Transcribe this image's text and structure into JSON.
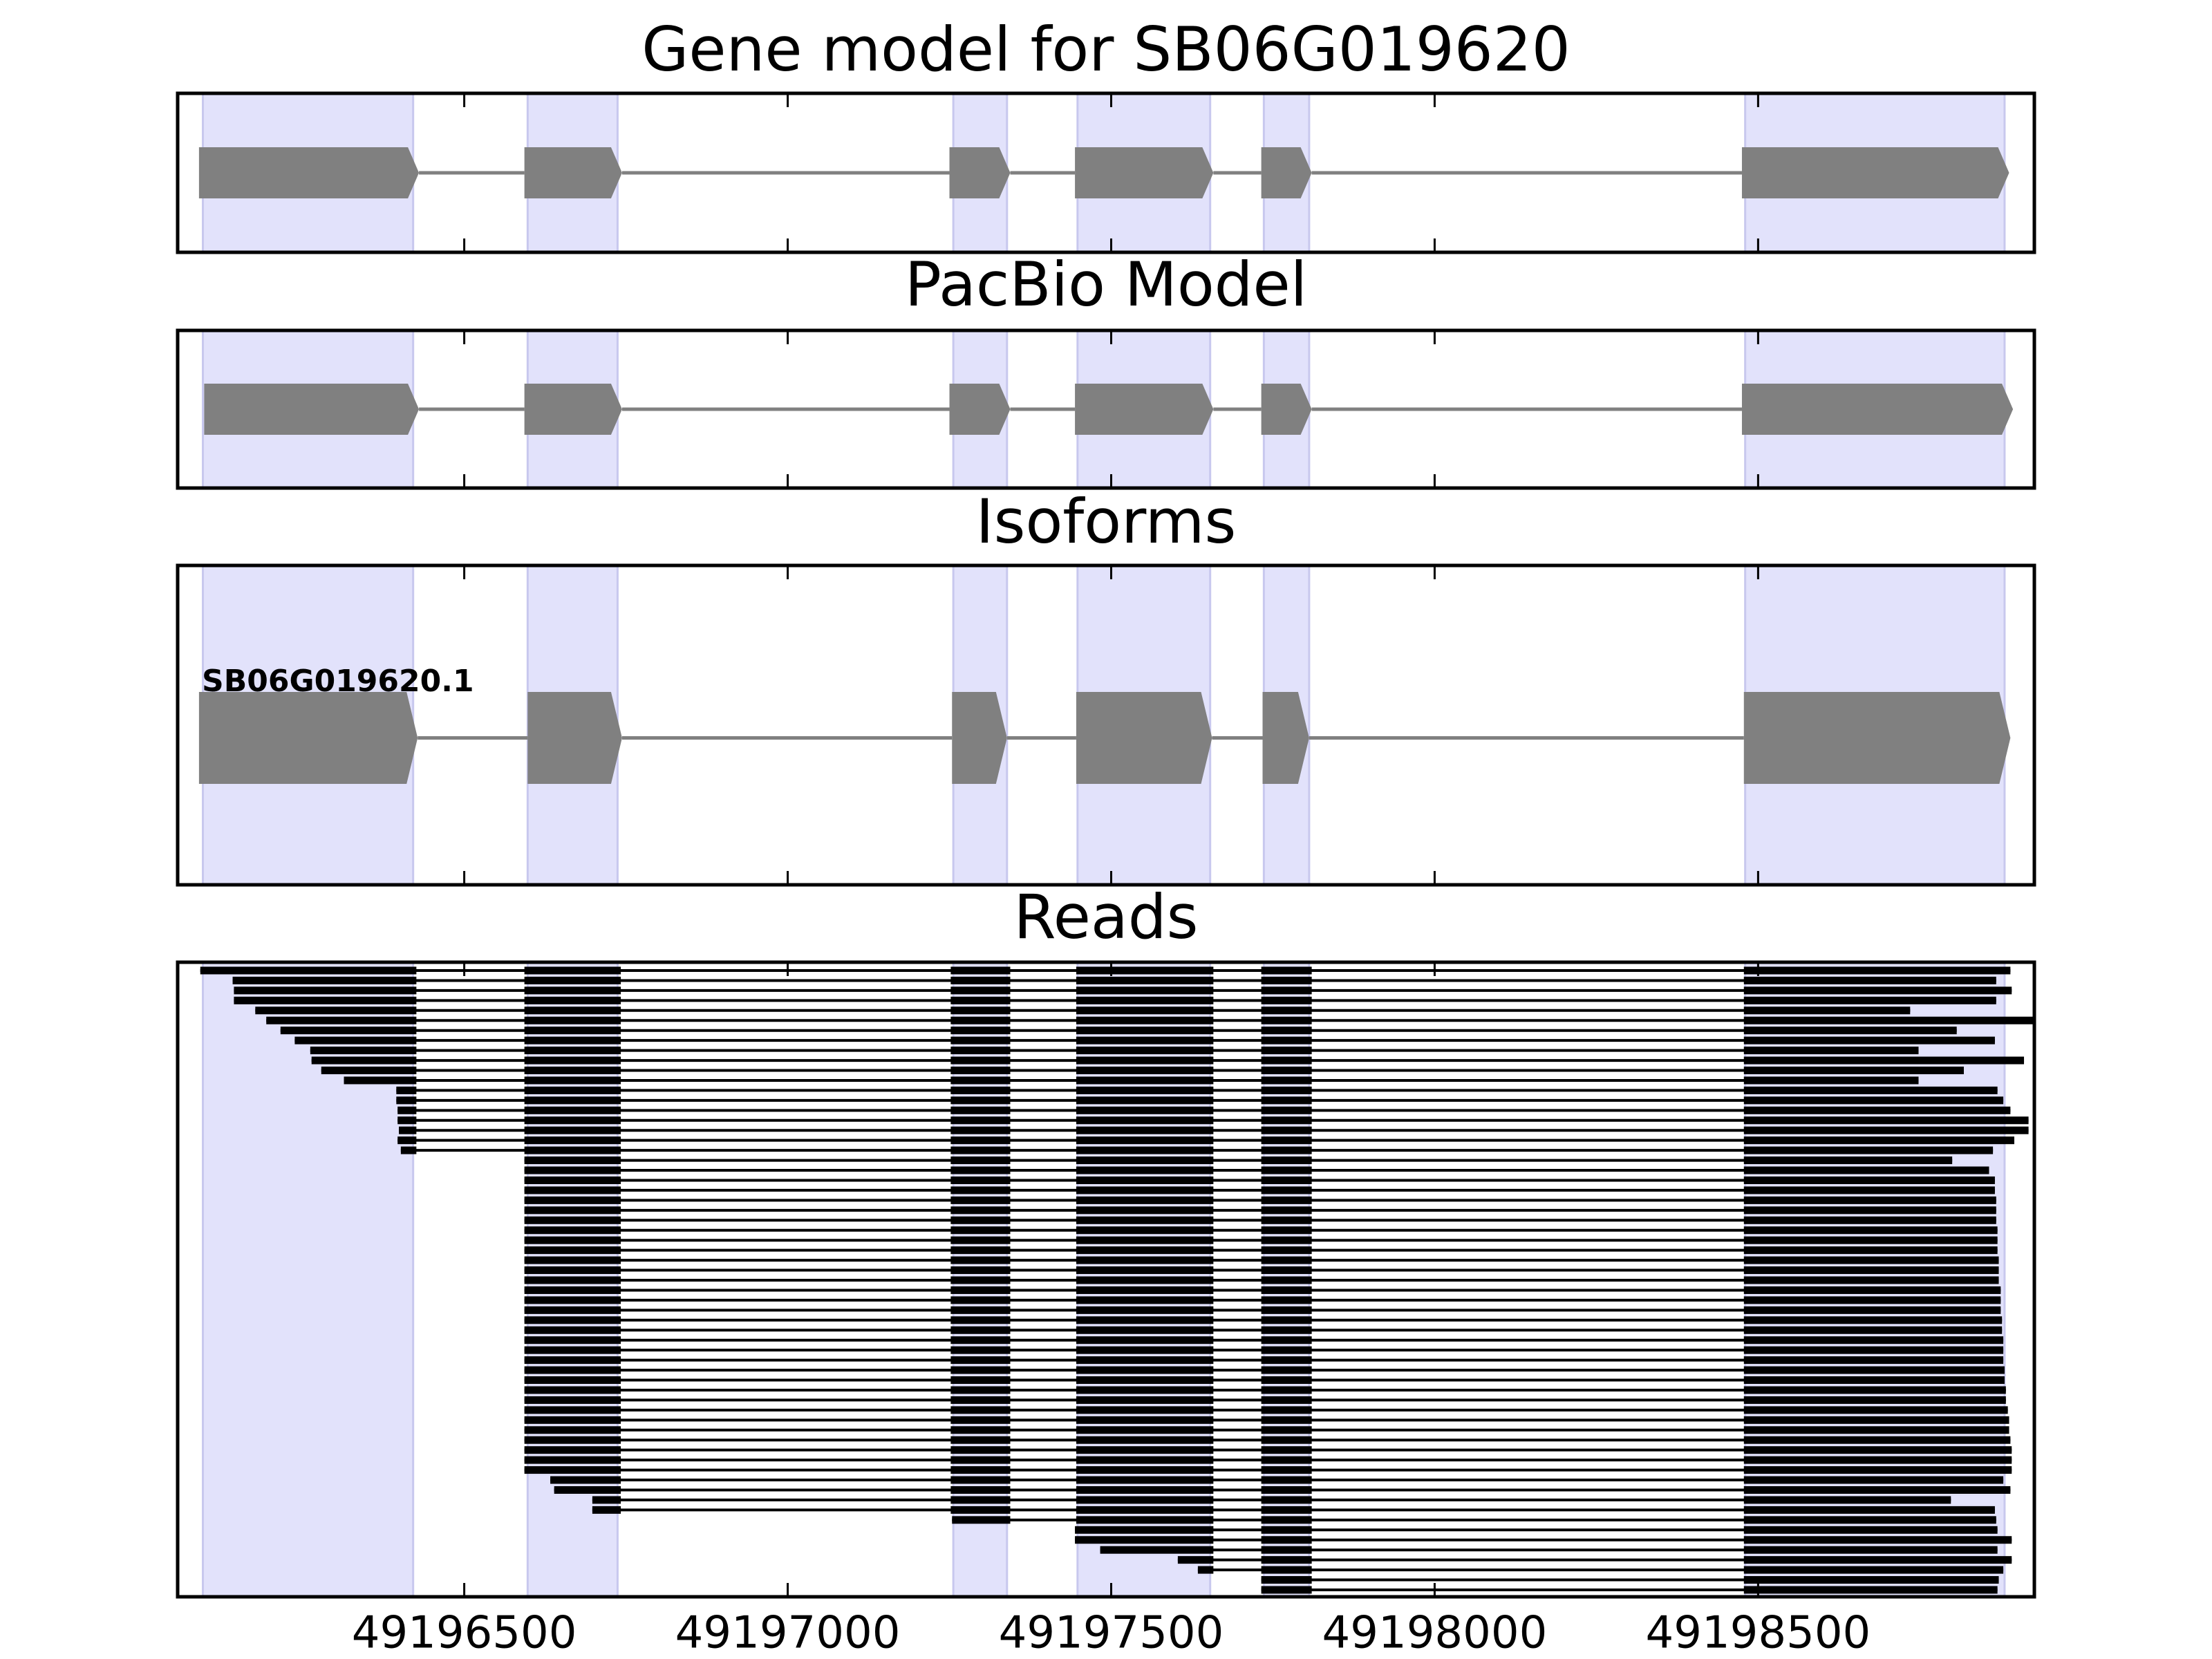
{
  "chart_data": [
    {
      "type": "gene",
      "title": "Gene model for SB06G019620",
      "xlim": [
        49196057,
        49198927
      ],
      "shaded": [
        [
          49196096,
          49196421
        ],
        [
          49196598,
          49196737
        ],
        [
          49197256,
          49197339
        ],
        [
          49197448,
          49197653
        ],
        [
          49197736,
          49197806
        ],
        [
          49198480,
          49198881
        ]
      ],
      "exons": [
        [
          49196090,
          49196430
        ],
        [
          49196593,
          49196744
        ],
        [
          49197250,
          49197344
        ],
        [
          49197444,
          49197658
        ],
        [
          49197732,
          49197810
        ],
        [
          49198475,
          49198888
        ]
      ]
    },
    {
      "type": "gene",
      "title": "PacBio Model",
      "xlim": [
        49196057,
        49198927
      ],
      "shaded": [
        [
          49196096,
          49196421
        ],
        [
          49196598,
          49196737
        ],
        [
          49197256,
          49197339
        ],
        [
          49197448,
          49197653
        ],
        [
          49197736,
          49197806
        ],
        [
          49198480,
          49198881
        ]
      ],
      "exons": [
        [
          49196098,
          49196430
        ],
        [
          49196593,
          49196744
        ],
        [
          49197250,
          49197344
        ],
        [
          49197444,
          49197658
        ],
        [
          49197732,
          49197810
        ],
        [
          49198475,
          49198894
        ]
      ]
    },
    {
      "type": "isoform",
      "title": "Isoforms",
      "label": "SB06G019620.1",
      "xlim": [
        49196057,
        49198927
      ],
      "shaded": [
        [
          49196096,
          49196421
        ],
        [
          49196598,
          49196737
        ],
        [
          49197256,
          49197339
        ],
        [
          49197448,
          49197653
        ],
        [
          49197736,
          49197806
        ],
        [
          49198480,
          49198881
        ]
      ],
      "exons": [
        [
          49196090,
          49196428
        ],
        [
          49196598,
          49196744
        ],
        [
          49197254,
          49197339
        ],
        [
          49197446,
          49197656
        ],
        [
          49197734,
          49197806
        ],
        [
          49198478,
          49198890
        ]
      ]
    },
    {
      "type": "reads",
      "title": "Reads",
      "xlim": [
        49196057,
        49198927
      ],
      "xticks": [
        49196500,
        49197000,
        49197500,
        49198000,
        49198500
      ],
      "shaded": [
        [
          49196096,
          49196421
        ],
        [
          49196598,
          49196737
        ],
        [
          49197256,
          49197339
        ],
        [
          49197448,
          49197653
        ],
        [
          49197736,
          49197806
        ],
        [
          49198480,
          49198881
        ]
      ],
      "introns": [
        [
          49196426,
          49196593
        ],
        [
          49196742,
          49197252
        ],
        [
          49197344,
          49197446
        ],
        [
          49197658,
          49197732
        ],
        [
          49197810,
          49198478
        ]
      ],
      "reads": [
        [
          49196092,
          49198890
        ],
        [
          49196142,
          49198868
        ],
        [
          49196144,
          49198892
        ],
        [
          49196144,
          49198868
        ],
        [
          49196177,
          49198735
        ],
        [
          49196194,
          49198927
        ],
        [
          49196216,
          49198807
        ],
        [
          49196238,
          49198866
        ],
        [
          49196262,
          49198748
        ],
        [
          49196264,
          49198911
        ],
        [
          49196279,
          49198818
        ],
        [
          49196314,
          49198748
        ],
        [
          49196395,
          49198870
        ],
        [
          49196395,
          49198879
        ],
        [
          49196397,
          49198890
        ],
        [
          49196397,
          49198918
        ],
        [
          49196399,
          49198918
        ],
        [
          49196397,
          49198896
        ],
        [
          49196402,
          49198863
        ],
        [
          49196593,
          49198800
        ],
        [
          49196593,
          49198857
        ],
        [
          49196593,
          49198866
        ],
        [
          49196593,
          49198866
        ],
        [
          49196593,
          49198868
        ],
        [
          49196593,
          49198868
        ],
        [
          49196593,
          49198868
        ],
        [
          49196593,
          49198870
        ],
        [
          49196593,
          49198870
        ],
        [
          49196593,
          49198870
        ],
        [
          49196593,
          49198872
        ],
        [
          49196593,
          49198872
        ],
        [
          49196593,
          49198872
        ],
        [
          49196593,
          49198875
        ],
        [
          49196593,
          49198875
        ],
        [
          49196593,
          49198875
        ],
        [
          49196593,
          49198877
        ],
        [
          49196593,
          49198877
        ],
        [
          49196593,
          49198879
        ],
        [
          49196593,
          49198879
        ],
        [
          49196593,
          49198879
        ],
        [
          49196593,
          49198881
        ],
        [
          49196593,
          49198881
        ],
        [
          49196593,
          49198883
        ],
        [
          49196593,
          49198883
        ],
        [
          49196593,
          49198886
        ],
        [
          49196593,
          49198888
        ],
        [
          49196593,
          49198888
        ],
        [
          49196593,
          49198890
        ],
        [
          49196593,
          49198892
        ],
        [
          49196593,
          49198892
        ],
        [
          49196593,
          49198892
        ],
        [
          49196633,
          49198879
        ],
        [
          49196639,
          49198890
        ],
        [
          49196698,
          49198798
        ],
        [
          49196698,
          49198866
        ],
        [
          49197254,
          49198868
        ],
        [
          49197444,
          49198870
        ],
        [
          49197444,
          49198892
        ],
        [
          49197483,
          49198870
        ],
        [
          49197603,
          49198892
        ],
        [
          49197634,
          49198879
        ],
        [
          49197732,
          49198872
        ],
        [
          49197732,
          49198870
        ]
      ]
    }
  ]
}
